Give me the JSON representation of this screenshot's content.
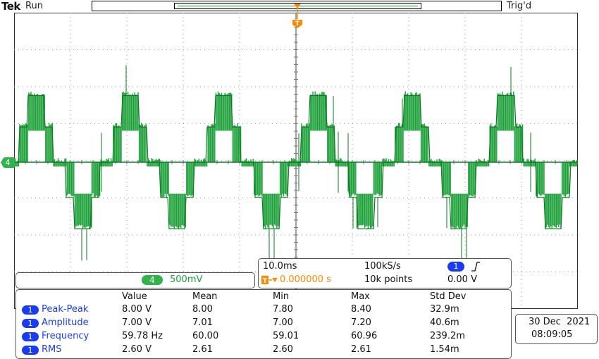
{
  "header": {
    "brand": "Tek",
    "run_status": "Run",
    "trigger_status": "Trig'd"
  },
  "trigger_marker": {
    "label": "T",
    "color": "#ff8a00"
  },
  "channel": {
    "number": "4",
    "scale": "500mV",
    "color": "#2fb34a"
  },
  "timebase": {
    "scale": "10.0ms",
    "sample_rate": "100kS/s",
    "record_length": "10k points",
    "position": "0.000000 s",
    "trigger_channel": "1",
    "trigger_edge_icon": "rising-edge-icon",
    "trigger_level": "0.00 V"
  },
  "measurements": {
    "headers": [
      "Value",
      "Mean",
      "Min",
      "Max",
      "Std Dev"
    ],
    "rows": [
      {
        "channel": "1",
        "name": "Peak-Peak",
        "value": "8.00 V",
        "mean": "8.00",
        "min": "7.80",
        "max": "8.40",
        "std_dev": "32.9m"
      },
      {
        "channel": "1",
        "name": "Amplitude",
        "value": "7.00 V",
        "mean": "7.01",
        "min": "7.00",
        "max": "7.20",
        "std_dev": "40.6m"
      },
      {
        "channel": "1",
        "name": "Frequency",
        "value": "59.78 Hz",
        "mean": "60.00",
        "min": "59.01",
        "max": "60.96",
        "std_dev": "239.2m"
      },
      {
        "channel": "1",
        "name": "RMS",
        "value": "2.60 V",
        "mean": "2.61",
        "min": "2.60",
        "max": "2.61",
        "std_dev": "1.54m"
      }
    ]
  },
  "datetime": {
    "date": "30 Dec  2021",
    "time": "08:09:05"
  },
  "colors": {
    "trace": "#1fa13a",
    "trace_dark": "#0f7a26",
    "measurement_blue": "#1a3cf0",
    "trigger_orange": "#ff8a00"
  },
  "waveform": {
    "description_free": true,
    "frequency_hz": 60,
    "levels_divisions": [
      0,
      1,
      1.9
    ],
    "visible_cycles": 6
  }
}
